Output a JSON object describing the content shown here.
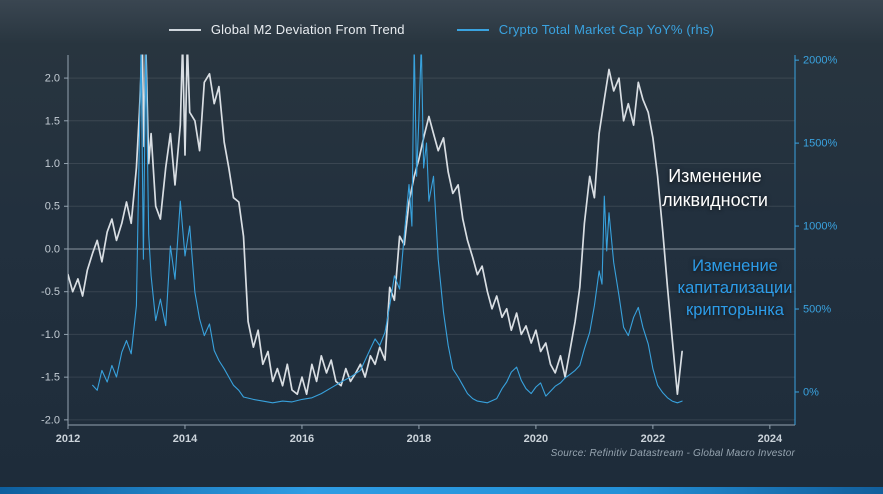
{
  "legend": [
    {
      "label": "Global M2 Deviation From Trend",
      "color": "#cfd6dc"
    },
    {
      "label": "Crypto Total Market Cap YoY% (rhs)",
      "color": "#3aa3e0"
    }
  ],
  "annotations": {
    "liquidity": "Изменение\nликвидности",
    "crypto": "Изменение\nкапитализации\nкрипторынка"
  },
  "chart_data": {
    "type": "line",
    "title": "",
    "source": "Source: Refinitiv Datastream - Global Macro Investor",
    "legend_position": "top-center",
    "grid": "horizontal",
    "x_axis": {
      "tick_labels": [
        "2012",
        "2014",
        "2016",
        "2018",
        "2020",
        "2022",
        "2024"
      ],
      "tick_values": [
        2012,
        2014,
        2016,
        2018,
        2020,
        2022,
        2024
      ],
      "xlim": [
        2012,
        2024.43
      ]
    },
    "left_axis": {
      "tick_labels": [
        "2.0",
        "1.5",
        "1.0",
        "0.5",
        "0.0",
        "-0.5",
        "-1.0",
        "-1.5",
        "-2.0"
      ],
      "tick_values": [
        2.0,
        1.5,
        1.0,
        0.5,
        0.0,
        -0.5,
        -1.0,
        -1.5,
        -2.0
      ],
      "ylim": [
        -2.06,
        2.27
      ]
    },
    "right_axis": {
      "tick_labels": [
        "2000%",
        "1500%",
        "1000%",
        "500%",
        "0%"
      ],
      "tick_values": [
        2000,
        1500,
        1000,
        500,
        0
      ],
      "ylim": [
        -199,
        2031
      ]
    },
    "style": {
      "grid_line": "rgba(255,255,255,0.10)",
      "zero_line": "rgba(226,234,240,0.55)",
      "axis_line": "#94a3b0",
      "left_tick_label_color": "#c3ccd4",
      "x_tick_label_color": "#ccd4db",
      "right_axis_color": "#3aa3e0"
    },
    "series": [
      {
        "id": "m2",
        "name": "Global M2 Deviation From Trend",
        "axis": "left",
        "color": "#d9dee3",
        "width": 1.7,
        "points": [
          [
            2012.0,
            -0.3
          ],
          [
            2012.08,
            -0.5
          ],
          [
            2012.17,
            -0.35
          ],
          [
            2012.25,
            -0.55
          ],
          [
            2012.33,
            -0.25
          ],
          [
            2012.42,
            -0.05
          ],
          [
            2012.5,
            0.1
          ],
          [
            2012.58,
            -0.15
          ],
          [
            2012.67,
            0.2
          ],
          [
            2012.75,
            0.35
          ],
          [
            2012.83,
            0.1
          ],
          [
            2012.92,
            0.3
          ],
          [
            2013.0,
            0.55
          ],
          [
            2013.08,
            0.3
          ],
          [
            2013.17,
            0.95
          ],
          [
            2013.22,
            1.6
          ],
          [
            2013.27,
            2.4
          ],
          [
            2013.3,
            1.2
          ],
          [
            2013.33,
            2.4
          ],
          [
            2013.38,
            1.0
          ],
          [
            2013.42,
            1.35
          ],
          [
            2013.5,
            0.5
          ],
          [
            2013.58,
            0.35
          ],
          [
            2013.67,
            0.95
          ],
          [
            2013.75,
            1.35
          ],
          [
            2013.83,
            0.75
          ],
          [
            2013.92,
            1.45
          ],
          [
            2013.96,
            2.4
          ],
          [
            2014.0,
            1.1
          ],
          [
            2014.04,
            2.4
          ],
          [
            2014.08,
            1.6
          ],
          [
            2014.17,
            1.5
          ],
          [
            2014.25,
            1.15
          ],
          [
            2014.33,
            1.95
          ],
          [
            2014.42,
            2.05
          ],
          [
            2014.5,
            1.7
          ],
          [
            2014.58,
            1.9
          ],
          [
            2014.67,
            1.25
          ],
          [
            2014.75,
            0.95
          ],
          [
            2014.83,
            0.6
          ],
          [
            2014.92,
            0.55
          ],
          [
            2015.0,
            0.15
          ],
          [
            2015.08,
            -0.85
          ],
          [
            2015.17,
            -1.15
          ],
          [
            2015.25,
            -0.95
          ],
          [
            2015.33,
            -1.35
          ],
          [
            2015.42,
            -1.2
          ],
          [
            2015.5,
            -1.55
          ],
          [
            2015.58,
            -1.4
          ],
          [
            2015.67,
            -1.6
          ],
          [
            2015.75,
            -1.35
          ],
          [
            2015.83,
            -1.65
          ],
          [
            2015.92,
            -1.7
          ],
          [
            2016.0,
            -1.5
          ],
          [
            2016.08,
            -1.7
          ],
          [
            2016.17,
            -1.35
          ],
          [
            2016.25,
            -1.55
          ],
          [
            2016.33,
            -1.25
          ],
          [
            2016.42,
            -1.45
          ],
          [
            2016.5,
            -1.3
          ],
          [
            2016.58,
            -1.55
          ],
          [
            2016.67,
            -1.6
          ],
          [
            2016.75,
            -1.4
          ],
          [
            2016.83,
            -1.55
          ],
          [
            2016.92,
            -1.45
          ],
          [
            2017.0,
            -1.35
          ],
          [
            2017.08,
            -1.5
          ],
          [
            2017.17,
            -1.25
          ],
          [
            2017.25,
            -1.35
          ],
          [
            2017.33,
            -1.15
          ],
          [
            2017.42,
            -1.3
          ],
          [
            2017.5,
            -0.45
          ],
          [
            2017.58,
            -0.6
          ],
          [
            2017.67,
            0.15
          ],
          [
            2017.75,
            0.05
          ],
          [
            2017.83,
            0.55
          ],
          [
            2017.92,
            0.85
          ],
          [
            2018.0,
            1.05
          ],
          [
            2018.08,
            1.3
          ],
          [
            2018.17,
            1.55
          ],
          [
            2018.25,
            1.35
          ],
          [
            2018.33,
            1.15
          ],
          [
            2018.42,
            1.3
          ],
          [
            2018.5,
            0.9
          ],
          [
            2018.58,
            0.65
          ],
          [
            2018.67,
            0.75
          ],
          [
            2018.75,
            0.35
          ],
          [
            2018.83,
            0.1
          ],
          [
            2018.92,
            -0.1
          ],
          [
            2019.0,
            -0.3
          ],
          [
            2019.08,
            -0.2
          ],
          [
            2019.17,
            -0.5
          ],
          [
            2019.25,
            -0.7
          ],
          [
            2019.33,
            -0.55
          ],
          [
            2019.42,
            -0.8
          ],
          [
            2019.5,
            -0.7
          ],
          [
            2019.58,
            -0.95
          ],
          [
            2019.67,
            -0.75
          ],
          [
            2019.75,
            -1.0
          ],
          [
            2019.83,
            -0.9
          ],
          [
            2019.92,
            -1.1
          ],
          [
            2020.0,
            -0.95
          ],
          [
            2020.08,
            -1.2
          ],
          [
            2020.17,
            -1.1
          ],
          [
            2020.25,
            -1.35
          ],
          [
            2020.33,
            -1.45
          ],
          [
            2020.42,
            -1.25
          ],
          [
            2020.5,
            -1.5
          ],
          [
            2020.58,
            -1.2
          ],
          [
            2020.67,
            -0.85
          ],
          [
            2020.75,
            -0.45
          ],
          [
            2020.83,
            0.3
          ],
          [
            2020.92,
            0.85
          ],
          [
            2021.0,
            0.6
          ],
          [
            2021.08,
            1.35
          ],
          [
            2021.17,
            1.75
          ],
          [
            2021.25,
            2.1
          ],
          [
            2021.33,
            1.85
          ],
          [
            2021.42,
            2.0
          ],
          [
            2021.5,
            1.5
          ],
          [
            2021.58,
            1.7
          ],
          [
            2021.67,
            1.45
          ],
          [
            2021.75,
            1.95
          ],
          [
            2021.83,
            1.75
          ],
          [
            2021.92,
            1.6
          ],
          [
            2022.0,
            1.3
          ],
          [
            2022.08,
            0.85
          ],
          [
            2022.17,
            0.2
          ],
          [
            2022.25,
            -0.45
          ],
          [
            2022.33,
            -1.05
          ],
          [
            2022.42,
            -1.7
          ],
          [
            2022.5,
            -1.2
          ]
        ]
      },
      {
        "id": "crypto",
        "name": "Crypto Total Market Cap YoY% (rhs)",
        "axis": "right",
        "color": "#38a1dc",
        "width": 1.1,
        "points": [
          [
            2012.42,
            40
          ],
          [
            2012.5,
            10
          ],
          [
            2012.58,
            130
          ],
          [
            2012.67,
            60
          ],
          [
            2012.75,
            160
          ],
          [
            2012.83,
            90
          ],
          [
            2012.92,
            240
          ],
          [
            2013.0,
            310
          ],
          [
            2013.08,
            230
          ],
          [
            2013.17,
            520
          ],
          [
            2013.25,
            2100
          ],
          [
            2013.29,
            800
          ],
          [
            2013.33,
            2100
          ],
          [
            2013.38,
            950
          ],
          [
            2013.42,
            700
          ],
          [
            2013.5,
            430
          ],
          [
            2013.58,
            560
          ],
          [
            2013.67,
            400
          ],
          [
            2013.75,
            880
          ],
          [
            2013.83,
            680
          ],
          [
            2013.92,
            1150
          ],
          [
            2014.0,
            820
          ],
          [
            2014.08,
            1000
          ],
          [
            2014.17,
            600
          ],
          [
            2014.25,
            440
          ],
          [
            2014.33,
            340
          ],
          [
            2014.42,
            410
          ],
          [
            2014.5,
            250
          ],
          [
            2014.58,
            190
          ],
          [
            2014.67,
            140
          ],
          [
            2014.75,
            90
          ],
          [
            2014.83,
            40
          ],
          [
            2014.92,
            10
          ],
          [
            2015.0,
            -30
          ],
          [
            2015.17,
            -45
          ],
          [
            2015.33,
            -55
          ],
          [
            2015.5,
            -65
          ],
          [
            2015.67,
            -55
          ],
          [
            2015.83,
            -60
          ],
          [
            2016.0,
            -45
          ],
          [
            2016.17,
            -35
          ],
          [
            2016.33,
            -10
          ],
          [
            2016.5,
            25
          ],
          [
            2016.67,
            60
          ],
          [
            2016.83,
            90
          ],
          [
            2017.0,
            130
          ],
          [
            2017.17,
            260
          ],
          [
            2017.25,
            320
          ],
          [
            2017.33,
            280
          ],
          [
            2017.42,
            360
          ],
          [
            2017.5,
            520
          ],
          [
            2017.58,
            700
          ],
          [
            2017.67,
            620
          ],
          [
            2017.75,
            950
          ],
          [
            2017.83,
            1250
          ],
          [
            2017.88,
            1000
          ],
          [
            2017.92,
            2100
          ],
          [
            2017.96,
            1300
          ],
          [
            2018.0,
            1650
          ],
          [
            2018.04,
            2100
          ],
          [
            2018.08,
            1350
          ],
          [
            2018.13,
            1500
          ],
          [
            2018.17,
            1150
          ],
          [
            2018.25,
            1300
          ],
          [
            2018.33,
            800
          ],
          [
            2018.42,
            480
          ],
          [
            2018.5,
            280
          ],
          [
            2018.58,
            140
          ],
          [
            2018.67,
            90
          ],
          [
            2018.75,
            40
          ],
          [
            2018.83,
            -10
          ],
          [
            2018.92,
            -40
          ],
          [
            2019.0,
            -55
          ],
          [
            2019.17,
            -65
          ],
          [
            2019.33,
            -40
          ],
          [
            2019.42,
            20
          ],
          [
            2019.5,
            60
          ],
          [
            2019.58,
            120
          ],
          [
            2019.67,
            150
          ],
          [
            2019.75,
            70
          ],
          [
            2019.83,
            20
          ],
          [
            2019.92,
            -10
          ],
          [
            2020.0,
            30
          ],
          [
            2020.08,
            55
          ],
          [
            2020.17,
            -25
          ],
          [
            2020.25,
            5
          ],
          [
            2020.33,
            35
          ],
          [
            2020.42,
            55
          ],
          [
            2020.5,
            85
          ],
          [
            2020.58,
            105
          ],
          [
            2020.67,
            130
          ],
          [
            2020.75,
            160
          ],
          [
            2020.83,
            260
          ],
          [
            2020.92,
            360
          ],
          [
            2021.0,
            520
          ],
          [
            2021.08,
            730
          ],
          [
            2021.13,
            650
          ],
          [
            2021.17,
            1180
          ],
          [
            2021.21,
            850
          ],
          [
            2021.25,
            1080
          ],
          [
            2021.33,
            780
          ],
          [
            2021.42,
            580
          ],
          [
            2021.5,
            390
          ],
          [
            2021.58,
            340
          ],
          [
            2021.67,
            450
          ],
          [
            2021.75,
            510
          ],
          [
            2021.83,
            390
          ],
          [
            2021.92,
            290
          ],
          [
            2022.0,
            140
          ],
          [
            2022.08,
            40
          ],
          [
            2022.17,
            -5
          ],
          [
            2022.25,
            -35
          ],
          [
            2022.33,
            -55
          ],
          [
            2022.42,
            -65
          ],
          [
            2022.5,
            -55
          ]
        ]
      }
    ]
  }
}
